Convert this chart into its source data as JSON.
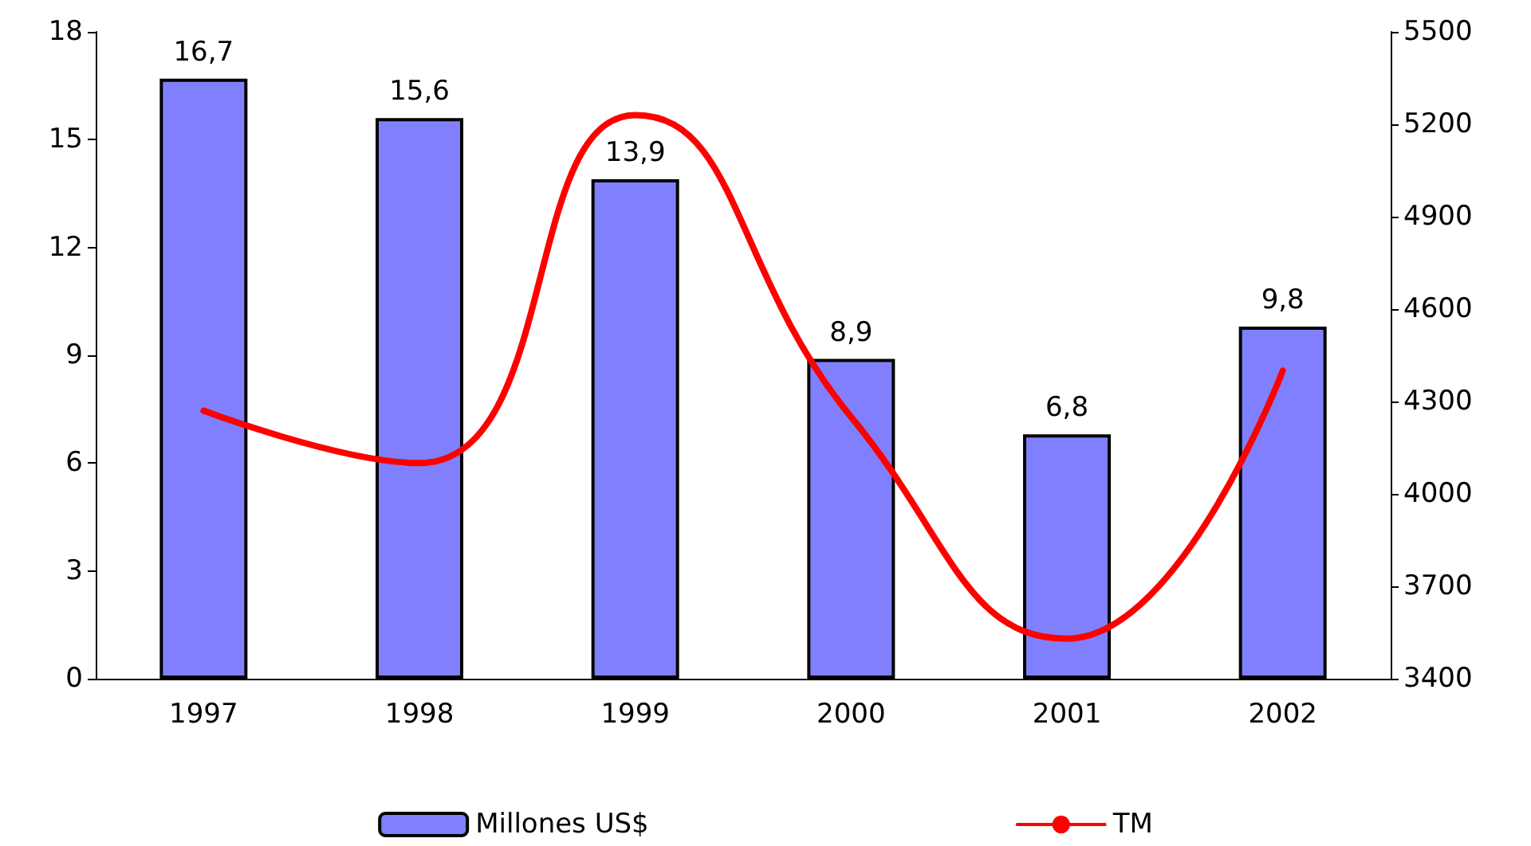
{
  "chart_data": {
    "type": "bar",
    "categories": [
      "1997",
      "1998",
      "1999",
      "2000",
      "2001",
      "2002"
    ],
    "series": [
      {
        "name": "Millones US$",
        "color": "#8080ff",
        "values": [
          16.7,
          15.6,
          13.9,
          8.9,
          6.8,
          9.8
        ],
        "value_labels": [
          "16,7",
          "15,6",
          "13,9",
          "8,9",
          "6,8",
          "9,8"
        ]
      },
      {
        "name": "TM",
        "type": "line",
        "axis": "y2",
        "color": "#ff0000",
        "values": [
          4270,
          4100,
          5230,
          4250,
          3530,
          4400
        ]
      }
    ],
    "ylim": [
      0,
      18
    ],
    "yticks": [
      0,
      3,
      6,
      9,
      12,
      15,
      18
    ],
    "y2lim": [
      3400,
      5500
    ],
    "y2ticks": [
      3400,
      3700,
      4000,
      4300,
      4600,
      4900,
      5200,
      5500
    ],
    "grid": false,
    "legend": "bottom",
    "marker": "none"
  }
}
